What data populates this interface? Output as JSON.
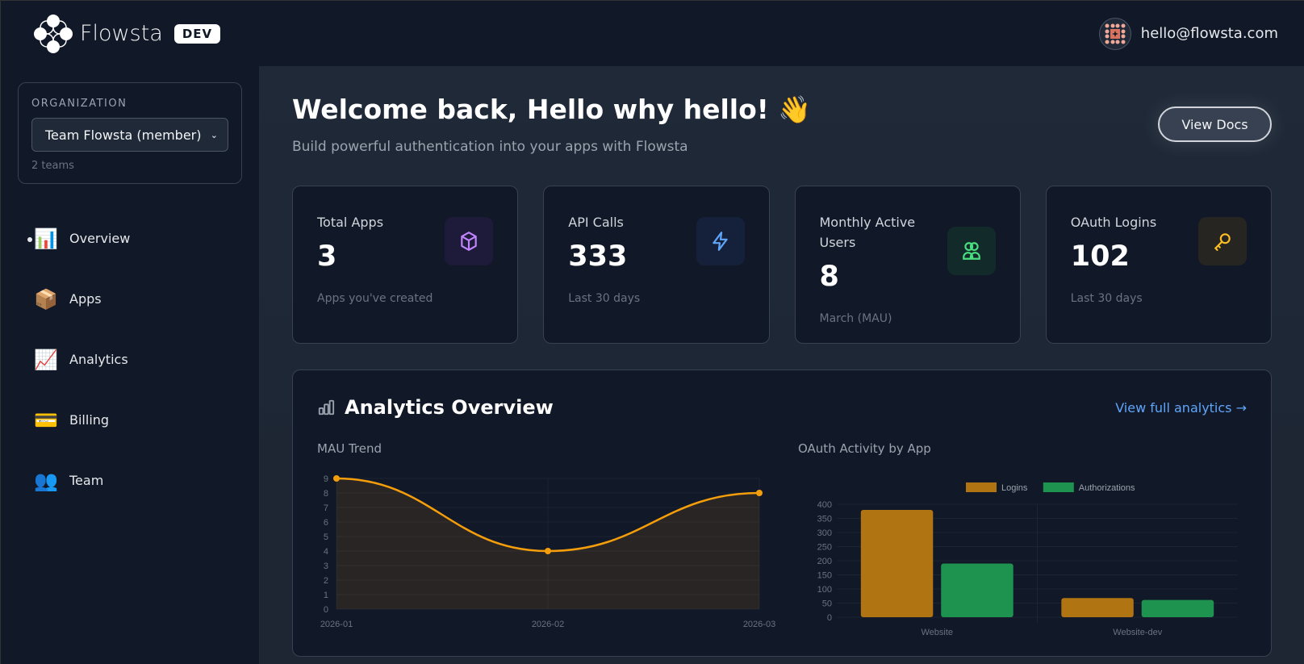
{
  "header": {
    "brand": "Flowsta",
    "env_badge": "DEV",
    "user_email": "hello@flowsta.com"
  },
  "sidebar": {
    "org_label": "ORGANIZATION",
    "org_selected": "Team Flowsta (member)",
    "org_count": "2 teams",
    "items": [
      {
        "label": "Overview",
        "emoji": "📊",
        "active": true
      },
      {
        "label": "Apps",
        "emoji": "📦"
      },
      {
        "label": "Analytics",
        "emoji": "📈"
      },
      {
        "label": "Billing",
        "emoji": "💳"
      },
      {
        "label": "Team",
        "emoji": "👥"
      }
    ]
  },
  "main": {
    "title": "Welcome back, Hello why hello! 👋",
    "subtitle": "Build powerful authentication into your apps with Flowsta",
    "docs_button": "View Docs",
    "stats": [
      {
        "label": "Total Apps",
        "value": "3",
        "sub": "Apps you've created",
        "icon": "cube-icon",
        "color": "#c084fc",
        "bg": "#1e1b3a"
      },
      {
        "label": "API Calls",
        "value": "333",
        "sub": "Last 30 days",
        "icon": "lightning-icon",
        "color": "#60a5fa",
        "bg": "#15213b"
      },
      {
        "label": "Monthly Active Users",
        "value": "8",
        "sub": "March (MAU)",
        "icon": "users-icon",
        "color": "#4ade80",
        "bg": "#132a2a"
      },
      {
        "label": "OAuth Logins",
        "value": "102",
        "sub": "Last 30 days",
        "icon": "key-icon",
        "color": "#fbbf24",
        "bg": "#272522"
      }
    ],
    "analytics": {
      "title": "Analytics Overview",
      "link": "View full analytics →"
    }
  },
  "chart_data": [
    {
      "type": "area",
      "title": "MAU Trend",
      "categories": [
        "2026-01",
        "2026-02",
        "2026-03"
      ],
      "values": [
        9,
        4,
        8
      ],
      "ylim": [
        0,
        9
      ],
      "yticks": [
        0,
        1,
        2,
        3,
        4,
        5,
        6,
        7,
        8,
        9
      ],
      "color": "#f59e0b",
      "grid": true
    },
    {
      "type": "bar",
      "title": "OAuth Activity by App",
      "categories": [
        "Website",
        "Website-dev"
      ],
      "series": [
        {
          "name": "Logins",
          "values": [
            380,
            68
          ],
          "color": "#b07512"
        },
        {
          "name": "Authorizations",
          "values": [
            190,
            61
          ],
          "color": "#1e9350"
        }
      ],
      "ylim": [
        0,
        400
      ],
      "yticks": [
        0,
        50,
        100,
        150,
        200,
        250,
        300,
        350,
        400
      ],
      "legend": "top",
      "grid": true
    }
  ]
}
